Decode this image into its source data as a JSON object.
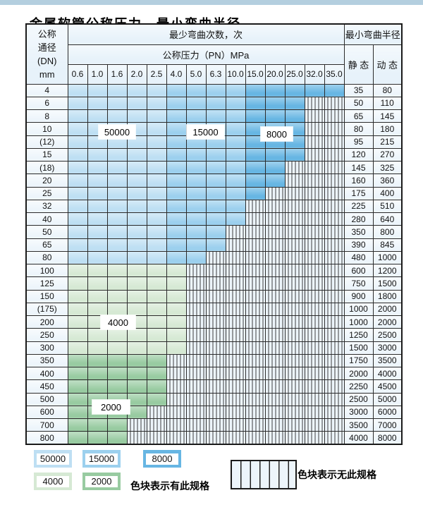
{
  "page": {
    "title": "金属软管公称压力、最小弯曲半径"
  },
  "colors": {
    "strip": "#b4cfdf",
    "header_bg": "#e7f2fa",
    "label_bg": "#edf5fb",
    "hatch_bg": "#edf5fb",
    "c50000": "#bedff3",
    "c15000": "#9cd0ee",
    "c8000": "#67b6e3",
    "c4000": "#d6e9d4",
    "c2000": "#98cba1"
  },
  "table": {
    "header": {
      "dn_lines": [
        "公称",
        "通径",
        "(DN)",
        "mm"
      ],
      "bend_times": "最少弯曲次数，次",
      "pressure": "公称压力（PN）MPa",
      "radius": "最小弯曲半径",
      "static": "静 态",
      "dynamic": "动 态"
    },
    "columns": [
      "0.6",
      "1.0",
      "1.6",
      "2.0",
      "2.5",
      "4.0",
      "5.0",
      "6.3",
      "10.0",
      "15.0",
      "20.0",
      "25.0",
      "32.0",
      "35.0"
    ],
    "blue_zones": {
      "z50000_last_idx": 4,
      "z15000_last_idx": 8
    },
    "rows": [
      {
        "dn": "4",
        "zone": "blue",
        "last_idx": 13,
        "static": "35",
        "dynamic": "80"
      },
      {
        "dn": "6",
        "zone": "blue",
        "last_idx": 11,
        "static": "50",
        "dynamic": "110"
      },
      {
        "dn": "8",
        "zone": "blue",
        "last_idx": 11,
        "static": "65",
        "dynamic": "145"
      },
      {
        "dn": "10",
        "zone": "blue",
        "last_idx": 11,
        "static": "80",
        "dynamic": "180"
      },
      {
        "dn": "(12)",
        "zone": "blue",
        "last_idx": 11,
        "static": "95",
        "dynamic": "215"
      },
      {
        "dn": "15",
        "zone": "blue",
        "last_idx": 11,
        "static": "120",
        "dynamic": "270"
      },
      {
        "dn": "(18)",
        "zone": "blue",
        "last_idx": 10,
        "static": "145",
        "dynamic": "325"
      },
      {
        "dn": "20",
        "zone": "blue",
        "last_idx": 10,
        "static": "160",
        "dynamic": "360"
      },
      {
        "dn": "25",
        "zone": "blue",
        "last_idx": 9,
        "static": "175",
        "dynamic": "400"
      },
      {
        "dn": "32",
        "zone": "blue",
        "last_idx": 8,
        "static": "225",
        "dynamic": "510"
      },
      {
        "dn": "40",
        "zone": "blue",
        "last_idx": 8,
        "static": "280",
        "dynamic": "640"
      },
      {
        "dn": "50",
        "zone": "blue",
        "last_idx": 7,
        "static": "350",
        "dynamic": "800"
      },
      {
        "dn": "65",
        "zone": "blue",
        "last_idx": 7,
        "static": "390",
        "dynamic": "845"
      },
      {
        "dn": "80",
        "zone": "blue",
        "last_idx": 6,
        "static": "480",
        "dynamic": "1000"
      },
      {
        "dn": "100",
        "zone": "g4000",
        "last_idx": 5,
        "static": "600",
        "dynamic": "1200"
      },
      {
        "dn": "125",
        "zone": "g4000",
        "last_idx": 5,
        "static": "750",
        "dynamic": "1500"
      },
      {
        "dn": "150",
        "zone": "g4000",
        "last_idx": 5,
        "static": "900",
        "dynamic": "1800"
      },
      {
        "dn": "(175)",
        "zone": "g4000",
        "last_idx": 5,
        "static": "1000",
        "dynamic": "2000"
      },
      {
        "dn": "200",
        "zone": "g4000",
        "last_idx": 5,
        "static": "1000",
        "dynamic": "2000"
      },
      {
        "dn": "250",
        "zone": "g4000",
        "last_idx": 5,
        "static": "1250",
        "dynamic": "2500"
      },
      {
        "dn": "300",
        "zone": "g4000",
        "last_idx": 5,
        "static": "1500",
        "dynamic": "3000"
      },
      {
        "dn": "350",
        "zone": "g2000",
        "last_idx": 4,
        "static": "1750",
        "dynamic": "3500"
      },
      {
        "dn": "400",
        "zone": "g2000",
        "last_idx": 4,
        "static": "2000",
        "dynamic": "4000"
      },
      {
        "dn": "450",
        "zone": "g2000",
        "last_idx": 4,
        "static": "2250",
        "dynamic": "4500"
      },
      {
        "dn": "500",
        "zone": "g2000",
        "last_idx": 4,
        "static": "2500",
        "dynamic": "5000"
      },
      {
        "dn": "600",
        "zone": "g2000",
        "last_idx": 3,
        "static": "3000",
        "dynamic": "6000"
      },
      {
        "dn": "700",
        "zone": "g2000",
        "last_idx": 2,
        "static": "3500",
        "dynamic": "7000"
      },
      {
        "dn": "800",
        "zone": "g2000",
        "last_idx": 2,
        "static": "4000",
        "dynamic": "8000"
      }
    ]
  },
  "overlay_labels": [
    "50000",
    "15000",
    "8000",
    "4000",
    "2000"
  ],
  "legend": {
    "swatches": [
      {
        "label": "50000",
        "color_key": "c50000"
      },
      {
        "label": "15000",
        "color_key": "c15000"
      },
      {
        "label": "8000",
        "color_key": "c8000"
      },
      {
        "label": "4000",
        "color_key": "c4000"
      },
      {
        "label": "2000",
        "color_key": "c2000"
      }
    ],
    "has_spec_text": "色块表示有此规格",
    "no_spec_text": "色块表示无此规格"
  }
}
